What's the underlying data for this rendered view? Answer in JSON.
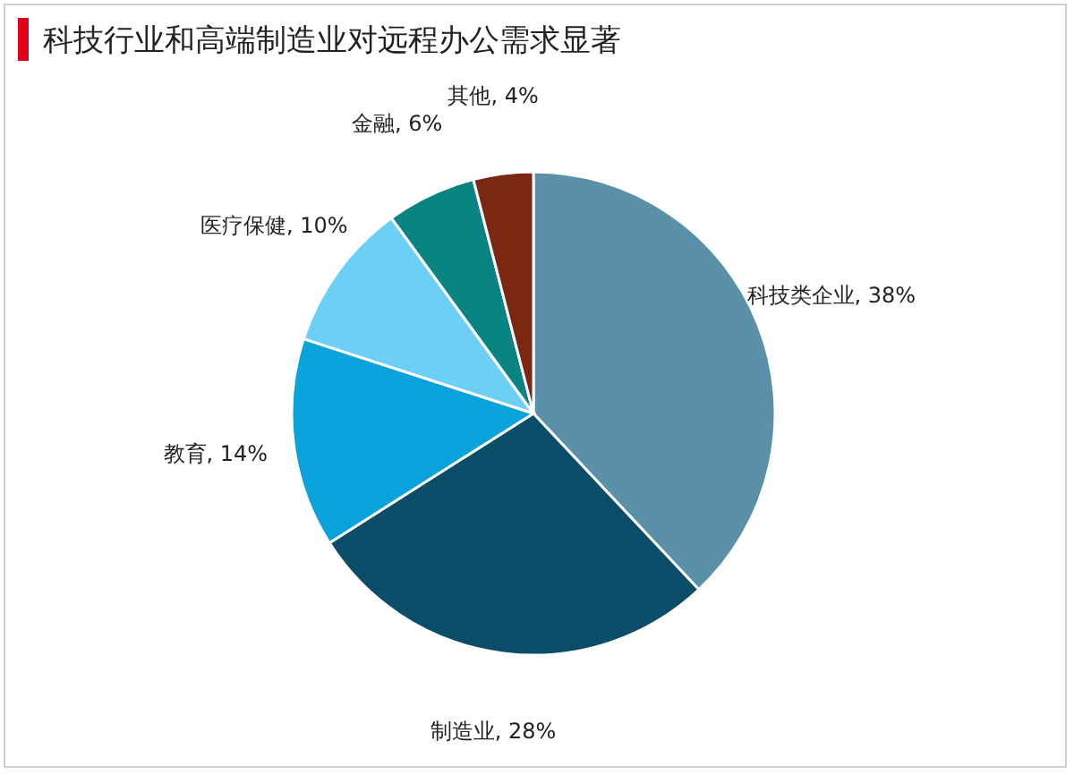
{
  "chart_data": {
    "type": "pie",
    "title": "科技行业和高端制造业对远程办公需求显著",
    "categories": [
      "科技类企业",
      "制造业",
      "教育",
      "医疗保健",
      "金融",
      "其他"
    ],
    "values": [
      38,
      28,
      14,
      10,
      6,
      4
    ],
    "value_labels": [
      "38%",
      "28%",
      "14%",
      "10%",
      "6%",
      "4%"
    ],
    "colors": [
      "#5b91a8",
      "#0b4d68",
      "#0aa2da",
      "#6ccff5",
      "#0a8383",
      "#7b2812"
    ]
  }
}
